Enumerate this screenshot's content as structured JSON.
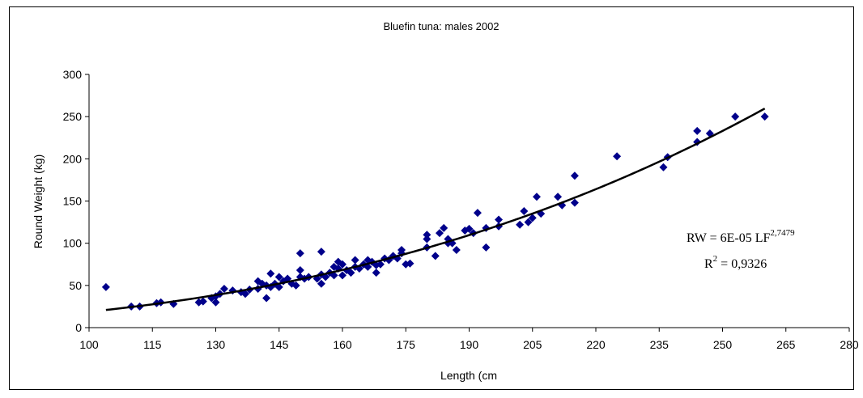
{
  "chart_data": {
    "type": "scatter",
    "title": "Bluefin tuna: males 2002",
    "xlabel": "Length (cm",
    "ylabel": "Round Weight (kg)",
    "xlim": [
      100,
      280
    ],
    "ylim": [
      0,
      300
    ],
    "x_ticks": [
      100,
      115,
      130,
      145,
      160,
      175,
      190,
      205,
      220,
      235,
      250,
      265,
      280
    ],
    "y_ticks": [
      0,
      50,
      100,
      150,
      200,
      250,
      300
    ],
    "grid": false,
    "legend": "none",
    "marker_color": "#00008B",
    "trendline_color": "#000000",
    "series": [
      {
        "points": [
          [
            104,
            48
          ],
          [
            110,
            25
          ],
          [
            112,
            25
          ],
          [
            116,
            29
          ],
          [
            117,
            30
          ],
          [
            120,
            28
          ],
          [
            126,
            30
          ],
          [
            127,
            31
          ],
          [
            129,
            35
          ],
          [
            130,
            30
          ],
          [
            130,
            37
          ],
          [
            131,
            40
          ],
          [
            132,
            46
          ],
          [
            134,
            44
          ],
          [
            136,
            42
          ],
          [
            137,
            40
          ],
          [
            138,
            45
          ],
          [
            140,
            46
          ],
          [
            140,
            55
          ],
          [
            141,
            52
          ],
          [
            142,
            35
          ],
          [
            142,
            50
          ],
          [
            143,
            48
          ],
          [
            143,
            64
          ],
          [
            144,
            52
          ],
          [
            145,
            48
          ],
          [
            145,
            60
          ],
          [
            146,
            55
          ],
          [
            147,
            58
          ],
          [
            148,
            52
          ],
          [
            149,
            50
          ],
          [
            150,
            60
          ],
          [
            150,
            68
          ],
          [
            150,
            88
          ],
          [
            151,
            58
          ],
          [
            152,
            60
          ],
          [
            154,
            58
          ],
          [
            155,
            52
          ],
          [
            155,
            63
          ],
          [
            155,
            90
          ],
          [
            156,
            60
          ],
          [
            157,
            65
          ],
          [
            158,
            62
          ],
          [
            158,
            72
          ],
          [
            159,
            70
          ],
          [
            159,
            78
          ],
          [
            160,
            62
          ],
          [
            160,
            75
          ],
          [
            161,
            68
          ],
          [
            162,
            65
          ],
          [
            163,
            72
          ],
          [
            163,
            80
          ],
          [
            164,
            70
          ],
          [
            165,
            75
          ],
          [
            166,
            72
          ],
          [
            166,
            80
          ],
          [
            167,
            78
          ],
          [
            168,
            65
          ],
          [
            168,
            74
          ],
          [
            169,
            75
          ],
          [
            170,
            82
          ],
          [
            171,
            80
          ],
          [
            172,
            85
          ],
          [
            173,
            82
          ],
          [
            174,
            88
          ],
          [
            174,
            92
          ],
          [
            175,
            75
          ],
          [
            176,
            76
          ],
          [
            180,
            95
          ],
          [
            180,
            105
          ],
          [
            180,
            110
          ],
          [
            182,
            85
          ],
          [
            183,
            112
          ],
          [
            184,
            118
          ],
          [
            185,
            100
          ],
          [
            185,
            105
          ],
          [
            186,
            100
          ],
          [
            187,
            92
          ],
          [
            189,
            115
          ],
          [
            190,
            117
          ],
          [
            191,
            112
          ],
          [
            192,
            136
          ],
          [
            194,
            95
          ],
          [
            194,
            118
          ],
          [
            197,
            120
          ],
          [
            197,
            128
          ],
          [
            202,
            122
          ],
          [
            203,
            138
          ],
          [
            204,
            125
          ],
          [
            205,
            130
          ],
          [
            206,
            155
          ],
          [
            207,
            135
          ],
          [
            211,
            155
          ],
          [
            212,
            145
          ],
          [
            215,
            148
          ],
          [
            215,
            180
          ],
          [
            225,
            203
          ],
          [
            236,
            190
          ],
          [
            237,
            202
          ],
          [
            244,
            220
          ],
          [
            244,
            233
          ],
          [
            247,
            230
          ],
          [
            253,
            250
          ],
          [
            260,
            250
          ]
        ]
      }
    ],
    "trendline": {
      "equation": "RW = 6E-05 LF",
      "exponent": "2,7479",
      "r2_label": "R",
      "r2_sup": "2",
      "r2_value": " = 0,9326",
      "coef": 6e-05,
      "power": 2.7479,
      "x_range": [
        104,
        260
      ]
    }
  }
}
